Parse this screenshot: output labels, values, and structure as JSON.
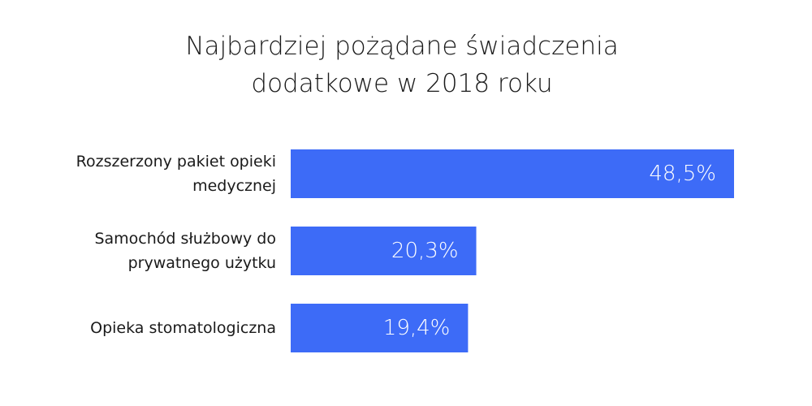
{
  "chart_data": {
    "type": "bar",
    "orientation": "horizontal",
    "title_lines": [
      "Najbardziej pożądane świadczenia",
      "dodatkowe w 2018 roku"
    ],
    "categories": [
      [
        "Rozszerzony pakiet opieki",
        "medycznej"
      ],
      [
        "Samochód służbowy do",
        "prywatnego użytku"
      ],
      [
        "Opieka stomatologiczna"
      ]
    ],
    "values": [
      48.5,
      20.3,
      19.4
    ],
    "value_labels": [
      "48,5%",
      "20,3%",
      "19,4%"
    ],
    "xlim": [
      0,
      48.5
    ],
    "grid": false,
    "legend": "none",
    "bar_color": "#3d6bf7"
  }
}
